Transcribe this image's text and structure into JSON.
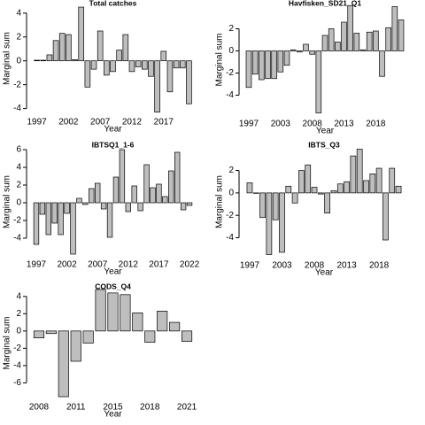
{
  "chart_data": [
    {
      "type": "bar",
      "title": "Total catches",
      "xlabel": "Year",
      "ylabel": "Marginal sum",
      "color": "#bebebe",
      "categories": [
        "1997",
        null,
        null,
        null,
        null,
        "2002",
        null,
        null,
        null,
        null,
        "2007",
        null,
        null,
        null,
        null,
        "2012",
        null,
        null,
        null,
        null,
        "2017",
        null,
        null,
        null,
        null
      ],
      "values": [
        0.05,
        0.05,
        0.5,
        1.7,
        2.3,
        2.2,
        0.1,
        4.5,
        -2.2,
        -0.7,
        2.5,
        -1.2,
        -0.9,
        0.9,
        2.2,
        -0.9,
        -0.5,
        -0.7,
        -1.3,
        -4.3,
        0.8,
        -2.6,
        -0.6,
        -0.6,
        -3.6
      ],
      "ylim": [
        -4.4,
        4.8
      ],
      "yticks": [
        -4,
        -2,
        0,
        2,
        4
      ]
    },
    {
      "type": "bar",
      "title": "Havfisken_SD21_Q1",
      "xlabel": "Year",
      "ylabel": "Marginal sum",
      "color": "#bebebe",
      "categories": [
        "1997",
        null,
        null,
        null,
        null,
        "2003",
        null,
        null,
        null,
        null,
        "2008",
        null,
        null,
        null,
        null,
        "2013",
        null,
        null,
        null,
        null,
        "2018",
        null,
        null,
        null,
        null
      ],
      "values": [
        -3.3,
        -2.1,
        -2.6,
        -2.5,
        -2.5,
        -1.9,
        -1.3,
        0.1,
        -0.1,
        0.6,
        -0.3,
        -5.6,
        1.4,
        2.0,
        0.8,
        2.6,
        4.1,
        1.6,
        0.1,
        1.7,
        1.8,
        -2.3,
        2.1,
        4.0,
        2.8
      ],
      "ylim": [
        -5.8,
        4.2
      ],
      "yticks": [
        -4,
        -2,
        0,
        2
      ]
    },
    {
      "type": "bar",
      "title": "IBTSQ1_1-6",
      "xlabel": "Year",
      "ylabel": "Marginal sum",
      "color": "#bebebe",
      "categories": [
        "1997",
        null,
        null,
        null,
        null,
        "2002",
        null,
        null,
        null,
        null,
        "2007",
        null,
        null,
        null,
        null,
        "2012",
        null,
        null,
        null,
        null,
        "2017",
        null,
        null,
        null,
        null,
        "2022"
      ],
      "values": [
        -4.7,
        -1.3,
        -3.6,
        -2.3,
        -3.6,
        -1.2,
        -5.8,
        0.5,
        -0.2,
        1.6,
        2.2,
        -0.7,
        -3.9,
        2.9,
        6.0,
        -1.0,
        1.9,
        -0.9,
        4.3,
        1.7,
        2.1,
        0.7,
        3.6,
        5.7,
        -0.8,
        -0.3
      ],
      "ylim": [
        -6.0,
        6.2
      ],
      "yticks": [
        -4,
        -2,
        0,
        2,
        4,
        6
      ]
    },
    {
      "type": "bar",
      "title": "IBTS_Q3",
      "xlabel": "Year",
      "ylabel": "Marginal sum",
      "color": "#bebebe",
      "categories": [
        "1997",
        null,
        null,
        null,
        null,
        "2003",
        null,
        null,
        null,
        null,
        "2008",
        null,
        null,
        null,
        null,
        "2013",
        null,
        null,
        null,
        null,
        "2018",
        null,
        null,
        null
      ],
      "values": [
        0.9,
        0,
        -2.2,
        -5.5,
        -2.4,
        -5.3,
        0.6,
        -0.9,
        2.0,
        2.5,
        0.5,
        -0.1,
        -1.8,
        0.2,
        0.8,
        1.0,
        3.3,
        3.9,
        1.1,
        1.7,
        2.2,
        -4.2,
        2.2,
        0.6
      ],
      "ylim": [
        -5.7,
        4.1
      ],
      "yticks": [
        -4,
        -2,
        0,
        2
      ]
    },
    {
      "type": "bar",
      "title": "CODS_Q4",
      "xlabel": "Year",
      "ylabel": "Marginal sum",
      "color": "#bebebe",
      "categories": [
        "2008",
        null,
        null,
        "2011",
        null,
        null,
        "2015",
        null,
        null,
        "2018",
        null,
        null,
        "2021"
      ],
      "values": [
        -0.8,
        -0.3,
        -7.6,
        -3.5,
        -1.4,
        4.8,
        4.4,
        4.2,
        2.1,
        -1.3,
        2.3,
        1.0,
        -1.2
      ],
      "ylim": [
        -7.8,
        5.0
      ],
      "yticks": [
        -6,
        -4,
        -2,
        0,
        2,
        4
      ]
    }
  ]
}
